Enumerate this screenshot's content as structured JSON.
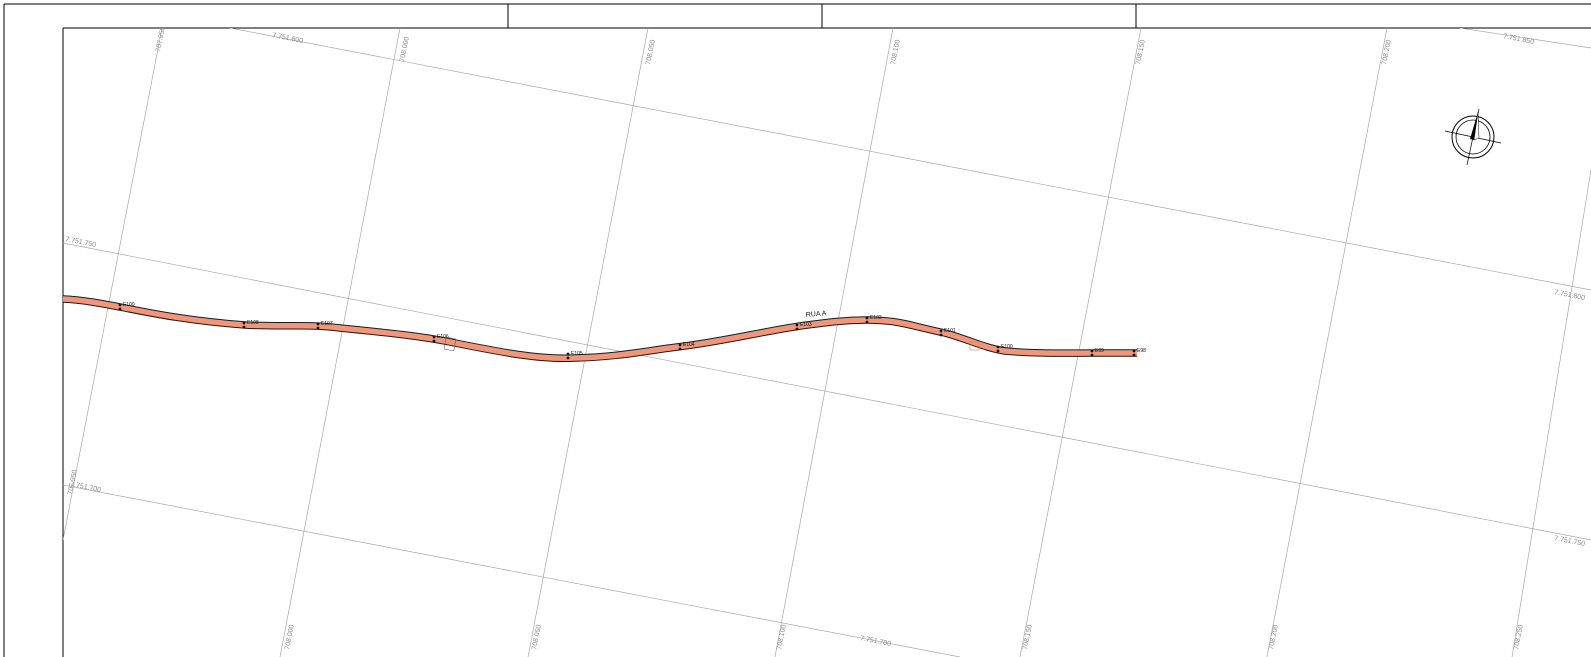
{
  "map": {
    "street_label": "RUA A",
    "road_color": "#f0967a",
    "road_outline_color": "#1a1a1a",
    "grid_color": "#a8a8a8",
    "north_arrow_icon": "compass-north-arrow-icon",
    "easting_labels": [
      "707.950",
      "708.000",
      "708.050",
      "708.100",
      "708.150",
      "708.200",
      "708.250"
    ],
    "northing_labels": [
      "7.751.850",
      "7.751.800",
      "7.751.750",
      "7.751.700"
    ],
    "stations": [
      {
        "label": "E109"
      },
      {
        "label": "E108"
      },
      {
        "label": "E107"
      },
      {
        "label": "E106"
      },
      {
        "label": "E105"
      },
      {
        "label": "E104"
      },
      {
        "label": "E103"
      },
      {
        "label": "E102"
      },
      {
        "label": "E101"
      },
      {
        "label": "E100"
      },
      {
        "label": "E99"
      },
      {
        "label": "E98"
      }
    ]
  }
}
